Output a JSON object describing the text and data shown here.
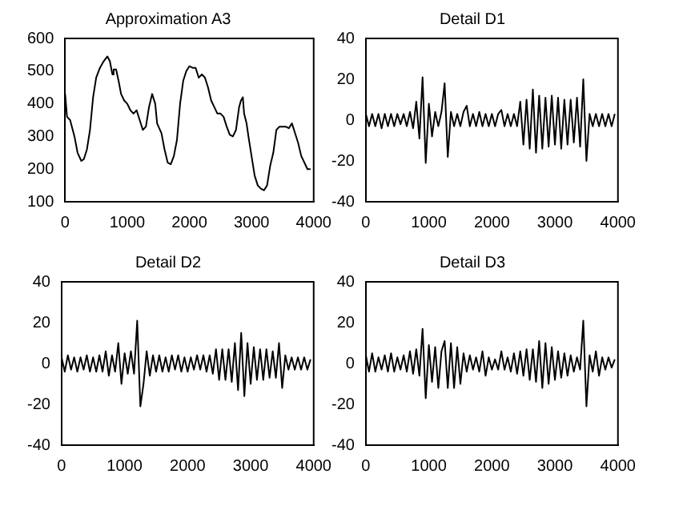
{
  "chart_data": [
    {
      "type": "line",
      "title": "Approximation A3",
      "color": "#000000",
      "xlim": [
        0,
        4000
      ],
      "ylim": [
        100,
        600
      ],
      "xticks": [
        0,
        1000,
        2000,
        3000,
        4000
      ],
      "yticks": [
        100,
        200,
        300,
        400,
        500,
        600
      ],
      "x": [
        0,
        30,
        80,
        150,
        200,
        260,
        300,
        350,
        400,
        450,
        500,
        560,
        620,
        680,
        720,
        760,
        780,
        820,
        860,
        900,
        950,
        1000,
        1050,
        1100,
        1150,
        1200,
        1250,
        1300,
        1350,
        1400,
        1450,
        1480,
        1550,
        1600,
        1650,
        1700,
        1750,
        1800,
        1850,
        1900,
        1950,
        2000,
        2050,
        2100,
        2150,
        2200,
        2250,
        2300,
        2350,
        2400,
        2450,
        2500,
        2550,
        2600,
        2650,
        2700,
        2750,
        2800,
        2830,
        2860,
        2880,
        2920,
        2950,
        3000,
        3050,
        3100,
        3150,
        3200,
        3250,
        3300,
        3350,
        3400,
        3450,
        3500,
        3550,
        3600,
        3650,
        3700,
        3750,
        3800,
        3850,
        3900,
        3950
      ],
      "values": [
        430,
        360,
        350,
        300,
        250,
        225,
        230,
        260,
        320,
        420,
        480,
        510,
        530,
        545,
        530,
        490,
        505,
        505,
        470,
        430,
        410,
        400,
        380,
        370,
        380,
        350,
        320,
        330,
        390,
        430,
        400,
        340,
        310,
        260,
        220,
        215,
        240,
        290,
        400,
        470,
        500,
        515,
        510,
        510,
        480,
        490,
        480,
        450,
        410,
        390,
        370,
        370,
        360,
        330,
        305,
        300,
        320,
        390,
        410,
        420,
        370,
        340,
        300,
        240,
        180,
        150,
        140,
        135,
        150,
        210,
        250,
        320,
        330,
        330,
        330,
        325,
        340,
        310,
        280,
        240,
        220,
        200,
        200
      ]
    },
    {
      "type": "line",
      "title": "Detail D1",
      "color": "#000000",
      "xlim": [
        0,
        4000
      ],
      "ylim": [
        -40,
        40
      ],
      "xticks": [
        0,
        1000,
        2000,
        3000,
        4000
      ],
      "yticks": [
        -40,
        -20,
        0,
        20,
        40
      ],
      "x": [
        0,
        50,
        100,
        150,
        200,
        250,
        300,
        350,
        400,
        450,
        500,
        550,
        600,
        650,
        700,
        750,
        800,
        850,
        900,
        950,
        1000,
        1050,
        1100,
        1150,
        1200,
        1250,
        1300,
        1350,
        1400,
        1450,
        1500,
        1550,
        1600,
        1650,
        1700,
        1750,
        1800,
        1850,
        1900,
        1950,
        2000,
        2050,
        2100,
        2150,
        2200,
        2250,
        2300,
        2350,
        2400,
        2450,
        2500,
        2550,
        2600,
        2650,
        2700,
        2750,
        2800,
        2850,
        2900,
        2950,
        3000,
        3050,
        3100,
        3150,
        3200,
        3250,
        3300,
        3350,
        3400,
        3450,
        3500,
        3550,
        3600,
        3650,
        3700,
        3750,
        3800,
        3850,
        3900,
        3950
      ],
      "values": [
        3,
        -3,
        3,
        -3,
        3,
        -4,
        3,
        -3,
        3,
        -3,
        3,
        -2,
        3,
        -3,
        4,
        -4,
        9,
        -9,
        21,
        -21,
        8,
        -8,
        4,
        -3,
        4,
        18,
        -18,
        4,
        -3,
        3,
        -3,
        4,
        7,
        -3,
        3,
        -3,
        4,
        -3,
        3,
        -3,
        3,
        -3,
        3,
        5,
        -3,
        3,
        -3,
        3,
        -3,
        9,
        -12,
        10,
        -14,
        15,
        -16,
        12,
        -14,
        11,
        -13,
        12,
        -12,
        11,
        -14,
        10,
        -12,
        10,
        -11,
        11,
        -13,
        20,
        -20,
        3,
        -3,
        3,
        -3,
        3,
        -3,
        3,
        -3,
        3
      ]
    },
    {
      "type": "line",
      "title": "Detail D2",
      "color": "#000000",
      "xlim": [
        0,
        4000
      ],
      "ylim": [
        -40,
        40
      ],
      "xticks": [
        0,
        1000,
        2000,
        3000,
        4000
      ],
      "yticks": [
        -40,
        -20,
        0,
        20,
        40
      ],
      "x": [
        0,
        50,
        100,
        150,
        200,
        250,
        300,
        350,
        400,
        450,
        500,
        550,
        600,
        650,
        700,
        750,
        800,
        850,
        900,
        950,
        1000,
        1050,
        1100,
        1150,
        1200,
        1250,
        1300,
        1350,
        1400,
        1450,
        1500,
        1550,
        1600,
        1650,
        1700,
        1750,
        1800,
        1850,
        1900,
        1950,
        2000,
        2050,
        2100,
        2150,
        2200,
        2250,
        2300,
        2350,
        2400,
        2450,
        2500,
        2550,
        2600,
        2650,
        2700,
        2750,
        2800,
        2850,
        2900,
        2950,
        3000,
        3050,
        3100,
        3150,
        3200,
        3250,
        3300,
        3350,
        3400,
        3450,
        3500,
        3550,
        3600,
        3650,
        3700,
        3750,
        3800,
        3850,
        3900,
        3950
      ],
      "values": [
        3,
        -4,
        4,
        -3,
        3,
        -4,
        3,
        -3,
        4,
        -4,
        3,
        -4,
        4,
        -4,
        6,
        -6,
        4,
        -4,
        10,
        -10,
        5,
        -5,
        6,
        -5,
        21,
        -21,
        -10,
        6,
        -6,
        4,
        -4,
        4,
        -4,
        3,
        -4,
        4,
        -3,
        4,
        -4,
        3,
        -4,
        3,
        -3,
        4,
        -3,
        4,
        -4,
        4,
        -5,
        7,
        -8,
        7,
        -8,
        7,
        -9,
        10,
        -13,
        15,
        -16,
        10,
        -10,
        8,
        -8,
        7,
        -8,
        7,
        -7,
        6,
        -7,
        10,
        -12,
        4,
        -3,
        3,
        -3,
        3,
        -3,
        3,
        -3,
        2
      ]
    },
    {
      "type": "line",
      "title": "Detail D3",
      "color": "#000000",
      "xlim": [
        0,
        4000
      ],
      "ylim": [
        -40,
        40
      ],
      "xticks": [
        0,
        1000,
        2000,
        3000,
        4000
      ],
      "yticks": [
        -40,
        -20,
        0,
        20,
        40
      ],
      "x": [
        0,
        50,
        100,
        150,
        200,
        250,
        300,
        350,
        400,
        450,
        500,
        550,
        600,
        650,
        700,
        750,
        800,
        850,
        900,
        950,
        1000,
        1050,
        1100,
        1150,
        1200,
        1250,
        1300,
        1350,
        1400,
        1450,
        1500,
        1550,
        1600,
        1650,
        1700,
        1750,
        1800,
        1850,
        1900,
        1950,
        2000,
        2050,
        2100,
        2150,
        2200,
        2250,
        2300,
        2350,
        2400,
        2450,
        2500,
        2550,
        2600,
        2650,
        2700,
        2750,
        2800,
        2850,
        2900,
        2950,
        3000,
        3050,
        3100,
        3150,
        3200,
        3250,
        3300,
        3350,
        3400,
        3450,
        3500,
        3550,
        3600,
        3650,
        3700,
        3750,
        3800,
        3850,
        3900,
        3950
      ],
      "values": [
        4,
        -4,
        5,
        -4,
        3,
        -3,
        4,
        -4,
        5,
        -4,
        3,
        -3,
        4,
        -4,
        6,
        -5,
        7,
        -6,
        17,
        -17,
        9,
        -9,
        8,
        -12,
        6,
        11,
        -12,
        10,
        -12,
        8,
        -10,
        5,
        -4,
        4,
        -3,
        3,
        -4,
        6,
        -6,
        3,
        -3,
        2,
        -3,
        6,
        -3,
        3,
        -4,
        5,
        -5,
        6,
        -6,
        7,
        -8,
        7,
        -9,
        11,
        -12,
        10,
        -10,
        8,
        -8,
        6,
        -7,
        5,
        -6,
        4,
        -4,
        3,
        -3,
        21,
        -21,
        4,
        -4,
        6,
        -6,
        3,
        -3,
        3,
        -2,
        2
      ]
    }
  ]
}
